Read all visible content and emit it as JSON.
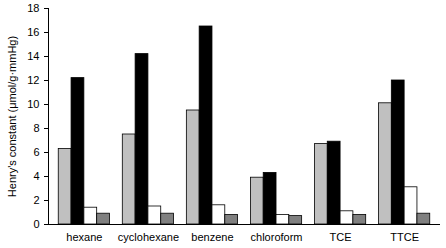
{
  "chart_data": {
    "type": "bar",
    "y_label": "Henry's constant (μmol/g·mmHg)",
    "categories": [
      "hexane",
      "cyclohexane",
      "benzene",
      "chloroform",
      "TCE",
      "TTCE"
    ],
    "series": [
      {
        "color": "#c0c0c0",
        "values": [
          6.3,
          7.5,
          9.5,
          3.9,
          6.7,
          10.1
        ]
      },
      {
        "color": "#000000",
        "values": [
          12.2,
          14.2,
          16.5,
          4.3,
          6.9,
          12.0
        ]
      },
      {
        "color": "#ffffff",
        "values": [
          1.4,
          1.5,
          1.6,
          0.8,
          1.1,
          3.1
        ]
      },
      {
        "color": "#808080",
        "values": [
          0.9,
          0.9,
          0.8,
          0.7,
          0.8,
          0.9
        ]
      }
    ],
    "ylim": [
      0,
      18
    ],
    "yticks": [
      0,
      2,
      4,
      6,
      8,
      10,
      12,
      14,
      16,
      18
    ],
    "grid": false
  }
}
